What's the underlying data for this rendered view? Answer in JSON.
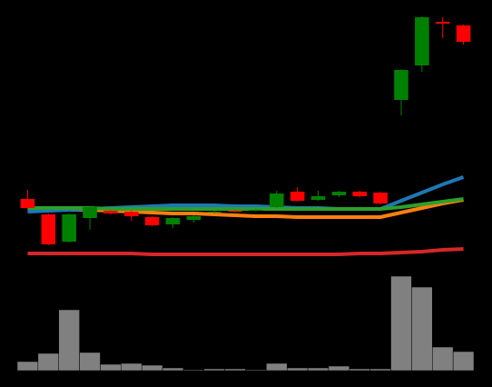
{
  "chart_data": [
    {
      "type": "candlestick",
      "ylim": [
        0,
        300
      ],
      "up_color": "#008000",
      "down_color": "#ff0000",
      "open": [
        81,
        64,
        34,
        60,
        68,
        67,
        61,
        53,
        58,
        66,
        68,
        68,
        72,
        89,
        80,
        85,
        89,
        88,
        190,
        228,
        276,
        272
      ],
      "high": [
        91,
        65,
        65,
        73,
        69,
        68,
        62,
        61,
        63,
        68,
        69,
        70,
        90,
        94,
        90,
        90,
        90,
        89,
        224,
        282,
        281,
        273
      ],
      "low": [
        70,
        30,
        33,
        47,
        64,
        57,
        51,
        49,
        55,
        65,
        66,
        67,
        71,
        78,
        79,
        83,
        83,
        75,
        173,
        221,
        258,
        251
      ],
      "close": [
        71,
        31,
        64,
        72,
        65,
        62,
        52,
        60,
        62,
        67,
        67,
        69,
        87,
        79,
        84,
        89,
        84,
        76,
        223,
        281,
        274,
        254
      ],
      "series": [
        {
          "color": "#d62728",
          "values": [
            21,
            21,
            21,
            21,
            21,
            21,
            20,
            20,
            20,
            20,
            20,
            20,
            20,
            20,
            20,
            20,
            21,
            21,
            22,
            23,
            25,
            26
          ]
        },
        {
          "color": "#ff7f0e",
          "values": [
            70,
            70,
            69,
            69,
            68,
            67,
            66,
            65,
            65,
            64,
            63,
            62,
            62,
            61,
            61,
            61,
            61,
            61,
            66,
            71,
            76,
            80
          ]
        },
        {
          "color": "#1f77b4",
          "values": [
            67,
            68,
            69,
            70,
            71,
            72,
            73,
            74,
            74,
            74,
            73,
            73,
            72,
            71,
            71,
            70,
            70,
            70,
            79,
            88,
            97,
            105
          ]
        },
        {
          "color": "#2ca02c",
          "values": [
            71,
            71,
            71,
            71,
            70,
            70,
            70,
            70,
            70,
            70,
            70,
            70,
            70,
            70,
            70,
            70,
            70,
            70,
            72,
            75,
            78,
            81
          ]
        }
      ]
    },
    {
      "type": "bar",
      "ylim": [
        0,
        110
      ],
      "color": "#808080",
      "values": [
        10,
        19,
        67,
        20,
        7,
        8,
        6,
        3,
        1,
        2,
        2,
        1,
        8,
        3,
        3,
        5,
        2,
        2,
        104,
        92,
        26,
        21
      ]
    }
  ]
}
